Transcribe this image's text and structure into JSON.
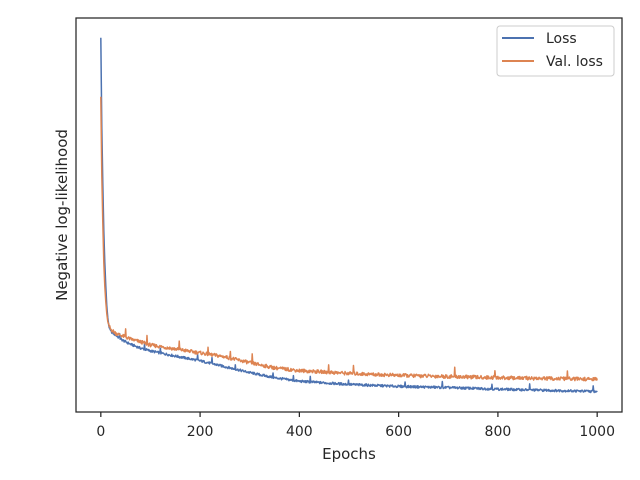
{
  "chart_data": {
    "type": "line",
    "title": "",
    "xlabel": "Epochs",
    "ylabel": "Negative log-likelihood",
    "xlim": [
      -50,
      1050
    ],
    "ylim": [
      0,
      1
    ],
    "xticks": [
      0,
      200,
      400,
      600,
      800,
      1000
    ],
    "yticks": [],
    "grid": false,
    "legend_position": "top-right",
    "series": [
      {
        "name": "Loss",
        "color": "#4c72b0",
        "x": [
          0,
          2,
          4,
          6,
          8,
          10,
          12,
          14,
          16,
          18,
          20,
          25,
          30,
          40,
          50,
          60,
          80,
          100,
          150,
          200,
          250,
          300,
          350,
          400,
          500,
          600,
          700,
          800,
          900,
          1000
        ],
        "y": [
          0.95,
          0.72,
          0.58,
          0.46,
          0.38,
          0.32,
          0.27,
          0.24,
          0.22,
          0.21,
          0.205,
          0.2,
          0.195,
          0.185,
          0.178,
          0.172,
          0.162,
          0.155,
          0.142,
          0.13,
          0.115,
          0.1,
          0.087,
          0.078,
          0.07,
          0.065,
          0.062,
          0.058,
          0.055,
          0.052
        ]
      },
      {
        "name": "Val. loss",
        "color": "#dd8452",
        "x": [
          0,
          2,
          4,
          6,
          8,
          10,
          12,
          14,
          16,
          18,
          20,
          25,
          30,
          40,
          50,
          60,
          80,
          100,
          150,
          200,
          250,
          300,
          350,
          400,
          500,
          600,
          700,
          800,
          900,
          1000
        ],
        "y": [
          0.8,
          0.6,
          0.48,
          0.38,
          0.32,
          0.28,
          0.25,
          0.23,
          0.22,
          0.215,
          0.21,
          0.205,
          0.2,
          0.195,
          0.19,
          0.185,
          0.178,
          0.17,
          0.16,
          0.15,
          0.14,
          0.125,
          0.112,
          0.105,
          0.098,
          0.093,
          0.09,
          0.087,
          0.085,
          0.083
        ]
      }
    ]
  }
}
